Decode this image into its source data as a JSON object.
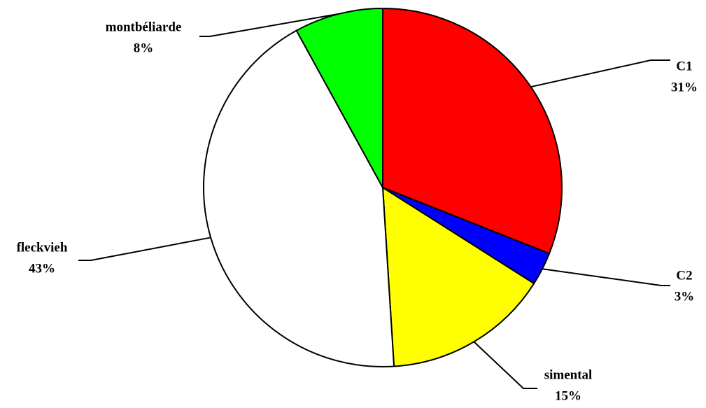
{
  "chart_data": {
    "type": "pie",
    "categories": [
      "C1",
      "C2",
      "simental",
      "fleckvieh",
      "montbéliarde"
    ],
    "values": [
      31,
      3,
      15,
      43,
      8
    ],
    "value_labels": [
      "31%",
      "3%",
      "15%",
      "43%",
      "8%"
    ],
    "colors": [
      "#ff0000",
      "#0000ff",
      "#ffff00",
      "#ffffff",
      "#00ff00"
    ]
  }
}
